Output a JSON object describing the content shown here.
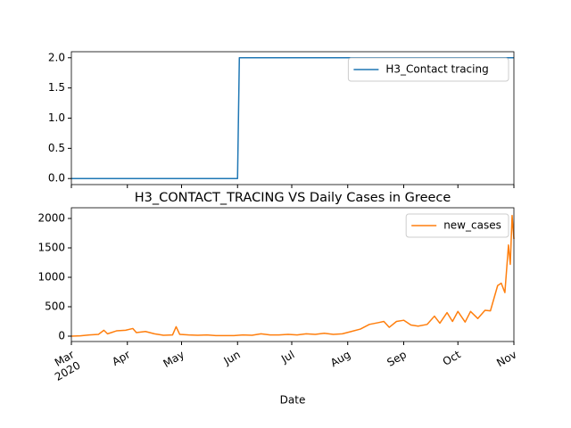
{
  "chart_data": [
    {
      "type": "line",
      "x": [
        "2020-03-01",
        "2020-06-01",
        "2020-06-02",
        "2020-11-01"
      ],
      "series": [
        {
          "name": "H3_Contact tracing",
          "color": "#1f77b4",
          "values": [
            0,
            0,
            2,
            2
          ]
        }
      ],
      "xlim": [
        "2020-03-01",
        "2020-11-01"
      ],
      "xticks": [
        "2020-03-01",
        "2020-04-01",
        "2020-05-01",
        "2020-06-01",
        "2020-07-01",
        "2020-08-01",
        "2020-09-01",
        "2020-10-01",
        "2020-11-01"
      ],
      "ylim": [
        -0.1,
        2.1
      ],
      "yticks": [
        {
          "value": 0,
          "label": "0.0"
        },
        {
          "value": 0.5,
          "label": "0.5"
        },
        {
          "value": 1,
          "label": "1.0"
        },
        {
          "value": 1.5,
          "label": "1.5"
        },
        {
          "value": 2,
          "label": "2.0"
        }
      ],
      "legend": "upper right"
    },
    {
      "type": "line",
      "title": "H3_CONTACT_TRACING VS Daily Cases in Greece",
      "x_label": "Date",
      "x": [
        "2020-03-01",
        "2020-03-06",
        "2020-03-11",
        "2020-03-16",
        "2020-03-19",
        "2020-03-21",
        "2020-03-26",
        "2020-03-31",
        "2020-04-04",
        "2020-04-06",
        "2020-04-11",
        "2020-04-16",
        "2020-04-21",
        "2020-04-26",
        "2020-04-28",
        "2020-04-30",
        "2020-05-05",
        "2020-05-10",
        "2020-05-15",
        "2020-05-20",
        "2020-05-25",
        "2020-05-30",
        "2020-06-04",
        "2020-06-09",
        "2020-06-14",
        "2020-06-19",
        "2020-06-24",
        "2020-06-29",
        "2020-07-04",
        "2020-07-09",
        "2020-07-14",
        "2020-07-19",
        "2020-07-24",
        "2020-07-29",
        "2020-08-03",
        "2020-08-08",
        "2020-08-13",
        "2020-08-18",
        "2020-08-21",
        "2020-08-24",
        "2020-08-28",
        "2020-09-01",
        "2020-09-05",
        "2020-09-09",
        "2020-09-14",
        "2020-09-18",
        "2020-09-21",
        "2020-09-25",
        "2020-09-28",
        "2020-10-01",
        "2020-10-05",
        "2020-10-08",
        "2020-10-12",
        "2020-10-16",
        "2020-10-19",
        "2020-10-23",
        "2020-10-25",
        "2020-10-27",
        "2020-10-29",
        "2020-10-30",
        "2020-10-31",
        "2020-11-01"
      ],
      "series": [
        {
          "name": "new_cases",
          "color": "#ff7f0e",
          "values": [
            0,
            5,
            20,
            30,
            100,
            40,
            90,
            100,
            130,
            60,
            80,
            40,
            15,
            20,
            160,
            30,
            20,
            15,
            20,
            10,
            10,
            10,
            20,
            15,
            40,
            20,
            20,
            30,
            20,
            40,
            30,
            50,
            30,
            40,
            80,
            120,
            200,
            230,
            250,
            150,
            250,
            270,
            190,
            170,
            200,
            340,
            220,
            400,
            250,
            420,
            240,
            420,
            300,
            440,
            430,
            860,
            900,
            740,
            1550,
            1220,
            2050,
            1650
          ]
        }
      ],
      "xlim": [
        "2020-03-01",
        "2020-11-01"
      ],
      "xticks": [
        {
          "value": "2020-03-01",
          "label": "Mar\n2020"
        },
        {
          "value": "2020-04-01",
          "label": "Apr"
        },
        {
          "value": "2020-05-01",
          "label": "May"
        },
        {
          "value": "2020-06-01",
          "label": "Jun"
        },
        {
          "value": "2020-07-01",
          "label": "Jul"
        },
        {
          "value": "2020-08-01",
          "label": "Aug"
        },
        {
          "value": "2020-09-01",
          "label": "Sep"
        },
        {
          "value": "2020-10-01",
          "label": "Oct"
        },
        {
          "value": "2020-11-01",
          "label": "Nov"
        }
      ],
      "ylim": [
        -91,
        2182
      ],
      "yticks": [
        0,
        500,
        1000,
        1500,
        2000
      ],
      "legend": "upper right"
    }
  ]
}
